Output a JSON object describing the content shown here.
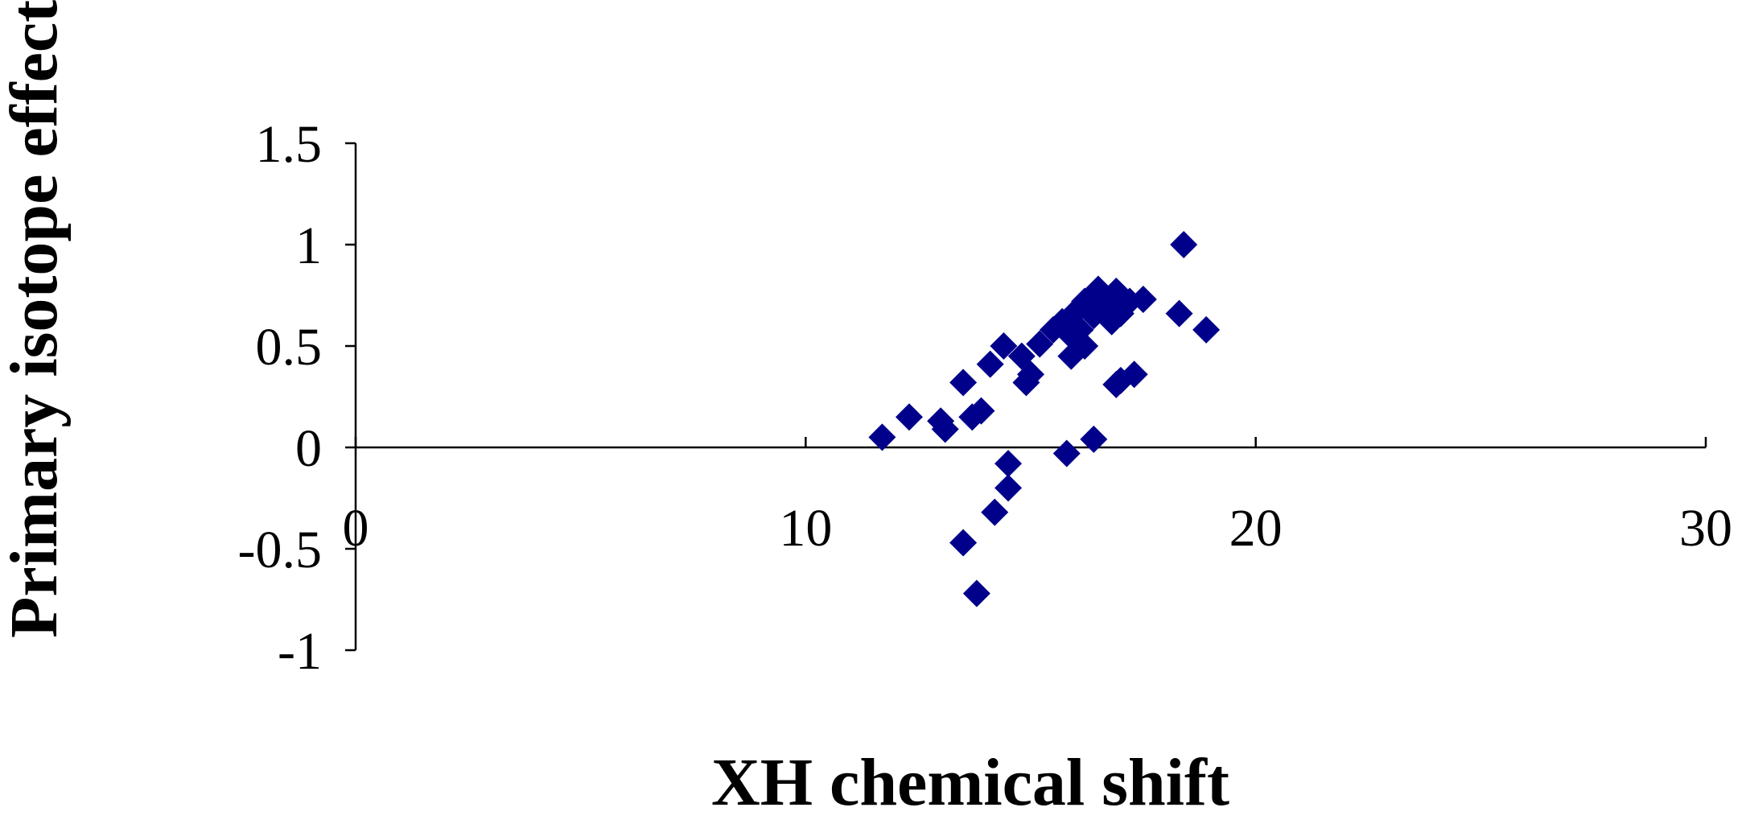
{
  "chart_data": {
    "type": "scatter",
    "title": "",
    "xlabel": "XH chemical shift",
    "ylabel": "Primary isotope effects",
    "xlim": [
      0,
      30
    ],
    "ylim": [
      -1,
      1.5
    ],
    "x_ticks": [
      0,
      10,
      20,
      30
    ],
    "y_ticks": [
      1.5,
      1,
      0.5,
      0,
      -0.5,
      -1
    ],
    "x_tick_labels": [
      "0",
      "10",
      "20",
      "30"
    ],
    "y_tick_labels": [
      "1.5",
      "1",
      "0.5",
      "0",
      "-0.5",
      "-1"
    ],
    "grid": false,
    "legend": "none",
    "marker": "diamond",
    "marker_color": "#00008B",
    "series": [
      {
        "points": [
          [
            11.7,
            0.05
          ],
          [
            12.3,
            0.15
          ],
          [
            13.0,
            0.13
          ],
          [
            13.1,
            0.09
          ],
          [
            13.5,
            0.32
          ],
          [
            13.7,
            0.15
          ],
          [
            13.9,
            0.18
          ],
          [
            14.1,
            0.41
          ],
          [
            14.4,
            0.5
          ],
          [
            14.8,
            0.45
          ],
          [
            14.9,
            0.32
          ],
          [
            15.0,
            0.36
          ],
          [
            15.2,
            0.51
          ],
          [
            15.5,
            0.58
          ],
          [
            15.7,
            0.62
          ],
          [
            15.9,
            0.45
          ],
          [
            15.9,
            0.55
          ],
          [
            16.0,
            0.67
          ],
          [
            16.1,
            0.58
          ],
          [
            16.2,
            0.72
          ],
          [
            16.2,
            0.5
          ],
          [
            16.4,
            0.65
          ],
          [
            16.5,
            0.78
          ],
          [
            16.6,
            0.73
          ],
          [
            16.7,
            0.7
          ],
          [
            16.8,
            0.62
          ],
          [
            16.9,
            0.77
          ],
          [
            17.0,
            0.66
          ],
          [
            17.2,
            0.72
          ],
          [
            17.5,
            0.73
          ],
          [
            16.9,
            0.31
          ],
          [
            17.0,
            0.33
          ],
          [
            17.3,
            0.36
          ],
          [
            18.3,
            0.66
          ],
          [
            18.4,
            1.0
          ],
          [
            18.9,
            0.58
          ],
          [
            15.8,
            -0.03
          ],
          [
            16.4,
            0.04
          ],
          [
            14.5,
            -0.08
          ],
          [
            14.5,
            -0.2
          ],
          [
            14.2,
            -0.32
          ],
          [
            13.5,
            -0.47
          ],
          [
            13.8,
            -0.72
          ]
        ]
      }
    ]
  }
}
